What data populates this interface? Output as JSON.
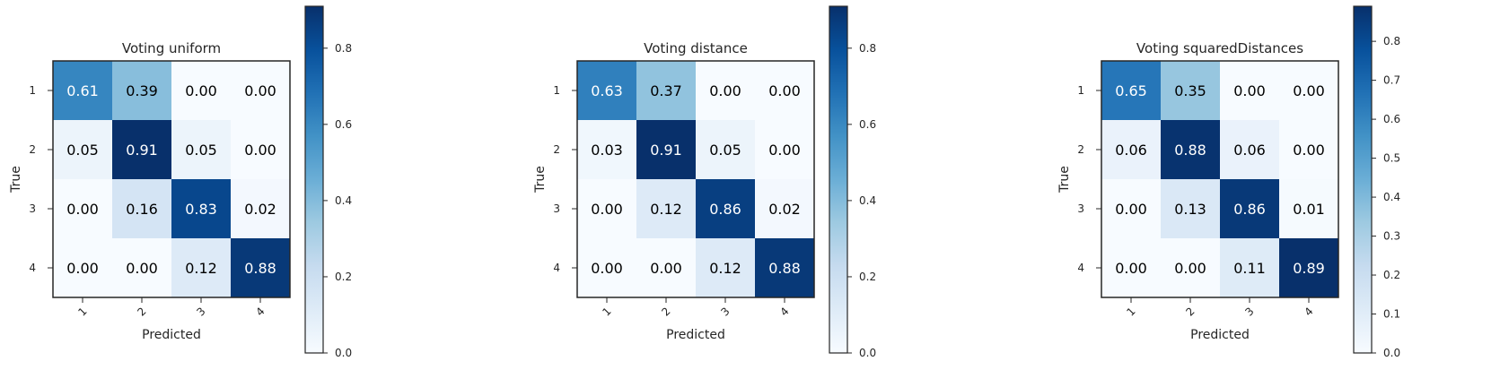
{
  "chart_data": [
    {
      "type": "heatmap",
      "title": "Voting uniform",
      "xlabel": "Predicted",
      "ylabel": "True",
      "xticks": [
        "1",
        "2",
        "3",
        "4"
      ],
      "yticks": [
        "1",
        "2",
        "3",
        "4"
      ],
      "values": [
        [
          0.61,
          0.39,
          0.0,
          0.0
        ],
        [
          0.05,
          0.91,
          0.05,
          0.0
        ],
        [
          0.0,
          0.16,
          0.83,
          0.02
        ],
        [
          0.0,
          0.0,
          0.12,
          0.88
        ]
      ],
      "colorbar": {
        "min": 0.0,
        "max": 0.91,
        "ticks": [
          "0.0",
          "0.2",
          "0.4",
          "0.6",
          "0.8"
        ]
      }
    },
    {
      "type": "heatmap",
      "title": "Voting distance",
      "xlabel": "Predicted",
      "ylabel": "True",
      "xticks": [
        "1",
        "2",
        "3",
        "4"
      ],
      "yticks": [
        "1",
        "2",
        "3",
        "4"
      ],
      "values": [
        [
          0.63,
          0.37,
          0.0,
          0.0
        ],
        [
          0.03,
          0.91,
          0.05,
          0.0
        ],
        [
          0.0,
          0.12,
          0.86,
          0.02
        ],
        [
          0.0,
          0.0,
          0.12,
          0.88
        ]
      ],
      "colorbar": {
        "min": 0.0,
        "max": 0.91,
        "ticks": [
          "0.0",
          "0.2",
          "0.4",
          "0.6",
          "0.8"
        ]
      }
    },
    {
      "type": "heatmap",
      "title": "Voting squaredDistances",
      "xlabel": "Predicted",
      "ylabel": "True",
      "xticks": [
        "1",
        "2",
        "3",
        "4"
      ],
      "yticks": [
        "1",
        "2",
        "3",
        "4"
      ],
      "values": [
        [
          0.65,
          0.35,
          0.0,
          0.0
        ],
        [
          0.06,
          0.88,
          0.06,
          0.0
        ],
        [
          0.0,
          0.13,
          0.86,
          0.01
        ],
        [
          0.0,
          0.0,
          0.11,
          0.89
        ]
      ],
      "colorbar": {
        "min": 0.0,
        "max": 0.89,
        "ticks": [
          "0.0",
          "0.1",
          "0.2",
          "0.3",
          "0.4",
          "0.5",
          "0.6",
          "0.7",
          "0.8"
        ]
      }
    }
  ],
  "colormap": {
    "name": "Blues",
    "stops": [
      "#f7fbff",
      "#deebf7",
      "#c6dbef",
      "#9ecae1",
      "#6baed6",
      "#4292c6",
      "#2171b5",
      "#08519c",
      "#08306b"
    ]
  }
}
